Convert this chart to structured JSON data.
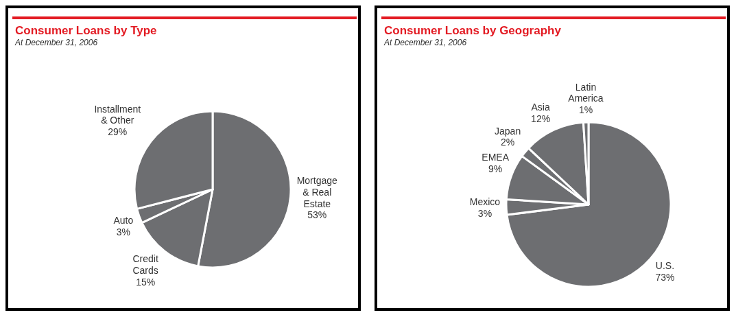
{
  "chart_data": [
    {
      "type": "pie",
      "title": "Consumer Loans by Type",
      "subtitle": "At December 31, 2006",
      "categories": [
        "Mortgage & Real Estate",
        "Credit Cards",
        "Auto",
        "Installment & Other"
      ],
      "values": [
        53,
        15,
        3,
        29
      ],
      "value_labels": [
        "53%",
        "15%",
        "3%",
        "29%"
      ],
      "colors": [
        "#6d6e71",
        "#6d6e71",
        "#6d6e71",
        "#6d6e71"
      ]
    },
    {
      "type": "pie",
      "title": "Consumer Loans by Geography",
      "subtitle": "At December 31, 2006",
      "categories": [
        "U.S.",
        "Mexico",
        "EMEA",
        "Japan",
        "Asia",
        "Latin America"
      ],
      "values": [
        73,
        3,
        9,
        2,
        12,
        1
      ],
      "value_labels": [
        "73%",
        "3%",
        "9%",
        "2%",
        "12%",
        "1%"
      ],
      "colors": [
        "#6d6e71",
        "#6d6e71",
        "#6d6e71",
        "#6d6e71",
        "#6d6e71",
        "#6d6e71"
      ]
    }
  ]
}
